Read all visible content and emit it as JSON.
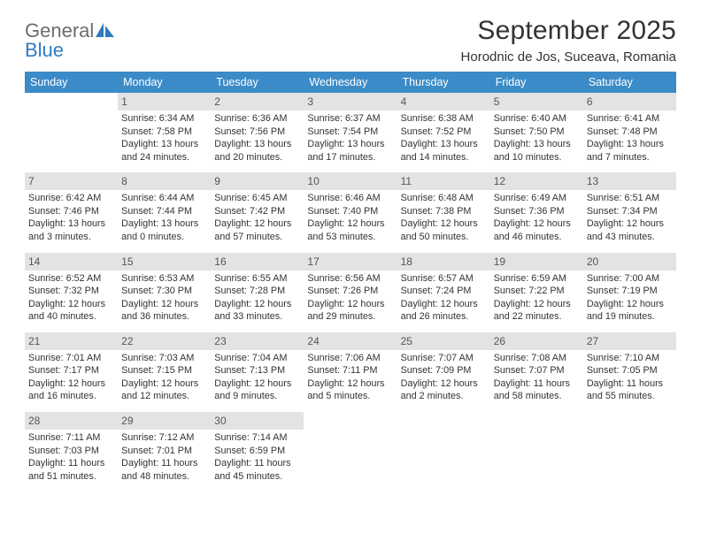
{
  "brand": {
    "part1": "General",
    "part2": "Blue"
  },
  "header": {
    "title": "September 2025",
    "location": "Horodnic de Jos, Suceava, Romania"
  },
  "colors": {
    "header_bg": "#3b8bc8",
    "header_text": "#ffffff",
    "daynum_bg": "#e3e3e3",
    "rule": "#2f5f86"
  },
  "dayNames": [
    "Sunday",
    "Monday",
    "Tuesday",
    "Wednesday",
    "Thursday",
    "Friday",
    "Saturday"
  ],
  "weeks": [
    {
      "nums": [
        "",
        "1",
        "2",
        "3",
        "4",
        "5",
        "6"
      ],
      "cells": [
        {
          "lines": []
        },
        {
          "lines": [
            "Sunrise: 6:34 AM",
            "Sunset: 7:58 PM",
            "Daylight: 13 hours",
            "and 24 minutes."
          ]
        },
        {
          "lines": [
            "Sunrise: 6:36 AM",
            "Sunset: 7:56 PM",
            "Daylight: 13 hours",
            "and 20 minutes."
          ]
        },
        {
          "lines": [
            "Sunrise: 6:37 AM",
            "Sunset: 7:54 PM",
            "Daylight: 13 hours",
            "and 17 minutes."
          ]
        },
        {
          "lines": [
            "Sunrise: 6:38 AM",
            "Sunset: 7:52 PM",
            "Daylight: 13 hours",
            "and 14 minutes."
          ]
        },
        {
          "lines": [
            "Sunrise: 6:40 AM",
            "Sunset: 7:50 PM",
            "Daylight: 13 hours",
            "and 10 minutes."
          ]
        },
        {
          "lines": [
            "Sunrise: 6:41 AM",
            "Sunset: 7:48 PM",
            "Daylight: 13 hours",
            "and 7 minutes."
          ]
        }
      ]
    },
    {
      "nums": [
        "7",
        "8",
        "9",
        "10",
        "11",
        "12",
        "13"
      ],
      "cells": [
        {
          "lines": [
            "Sunrise: 6:42 AM",
            "Sunset: 7:46 PM",
            "Daylight: 13 hours",
            "and 3 minutes."
          ]
        },
        {
          "lines": [
            "Sunrise: 6:44 AM",
            "Sunset: 7:44 PM",
            "Daylight: 13 hours",
            "and 0 minutes."
          ]
        },
        {
          "lines": [
            "Sunrise: 6:45 AM",
            "Sunset: 7:42 PM",
            "Daylight: 12 hours",
            "and 57 minutes."
          ]
        },
        {
          "lines": [
            "Sunrise: 6:46 AM",
            "Sunset: 7:40 PM",
            "Daylight: 12 hours",
            "and 53 minutes."
          ]
        },
        {
          "lines": [
            "Sunrise: 6:48 AM",
            "Sunset: 7:38 PM",
            "Daylight: 12 hours",
            "and 50 minutes."
          ]
        },
        {
          "lines": [
            "Sunrise: 6:49 AM",
            "Sunset: 7:36 PM",
            "Daylight: 12 hours",
            "and 46 minutes."
          ]
        },
        {
          "lines": [
            "Sunrise: 6:51 AM",
            "Sunset: 7:34 PM",
            "Daylight: 12 hours",
            "and 43 minutes."
          ]
        }
      ]
    },
    {
      "nums": [
        "14",
        "15",
        "16",
        "17",
        "18",
        "19",
        "20"
      ],
      "cells": [
        {
          "lines": [
            "Sunrise: 6:52 AM",
            "Sunset: 7:32 PM",
            "Daylight: 12 hours",
            "and 40 minutes."
          ]
        },
        {
          "lines": [
            "Sunrise: 6:53 AM",
            "Sunset: 7:30 PM",
            "Daylight: 12 hours",
            "and 36 minutes."
          ]
        },
        {
          "lines": [
            "Sunrise: 6:55 AM",
            "Sunset: 7:28 PM",
            "Daylight: 12 hours",
            "and 33 minutes."
          ]
        },
        {
          "lines": [
            "Sunrise: 6:56 AM",
            "Sunset: 7:26 PM",
            "Daylight: 12 hours",
            "and 29 minutes."
          ]
        },
        {
          "lines": [
            "Sunrise: 6:57 AM",
            "Sunset: 7:24 PM",
            "Daylight: 12 hours",
            "and 26 minutes."
          ]
        },
        {
          "lines": [
            "Sunrise: 6:59 AM",
            "Sunset: 7:22 PM",
            "Daylight: 12 hours",
            "and 22 minutes."
          ]
        },
        {
          "lines": [
            "Sunrise: 7:00 AM",
            "Sunset: 7:19 PM",
            "Daylight: 12 hours",
            "and 19 minutes."
          ]
        }
      ]
    },
    {
      "nums": [
        "21",
        "22",
        "23",
        "24",
        "25",
        "26",
        "27"
      ],
      "cells": [
        {
          "lines": [
            "Sunrise: 7:01 AM",
            "Sunset: 7:17 PM",
            "Daylight: 12 hours",
            "and 16 minutes."
          ]
        },
        {
          "lines": [
            "Sunrise: 7:03 AM",
            "Sunset: 7:15 PM",
            "Daylight: 12 hours",
            "and 12 minutes."
          ]
        },
        {
          "lines": [
            "Sunrise: 7:04 AM",
            "Sunset: 7:13 PM",
            "Daylight: 12 hours",
            "and 9 minutes."
          ]
        },
        {
          "lines": [
            "Sunrise: 7:06 AM",
            "Sunset: 7:11 PM",
            "Daylight: 12 hours",
            "and 5 minutes."
          ]
        },
        {
          "lines": [
            "Sunrise: 7:07 AM",
            "Sunset: 7:09 PM",
            "Daylight: 12 hours",
            "and 2 minutes."
          ]
        },
        {
          "lines": [
            "Sunrise: 7:08 AM",
            "Sunset: 7:07 PM",
            "Daylight: 11 hours",
            "and 58 minutes."
          ]
        },
        {
          "lines": [
            "Sunrise: 7:10 AM",
            "Sunset: 7:05 PM",
            "Daylight: 11 hours",
            "and 55 minutes."
          ]
        }
      ]
    },
    {
      "nums": [
        "28",
        "29",
        "30",
        "",
        "",
        "",
        ""
      ],
      "cells": [
        {
          "lines": [
            "Sunrise: 7:11 AM",
            "Sunset: 7:03 PM",
            "Daylight: 11 hours",
            "and 51 minutes."
          ]
        },
        {
          "lines": [
            "Sunrise: 7:12 AM",
            "Sunset: 7:01 PM",
            "Daylight: 11 hours",
            "and 48 minutes."
          ]
        },
        {
          "lines": [
            "Sunrise: 7:14 AM",
            "Sunset: 6:59 PM",
            "Daylight: 11 hours",
            "and 45 minutes."
          ]
        },
        {
          "lines": []
        },
        {
          "lines": []
        },
        {
          "lines": []
        },
        {
          "lines": []
        }
      ]
    }
  ]
}
